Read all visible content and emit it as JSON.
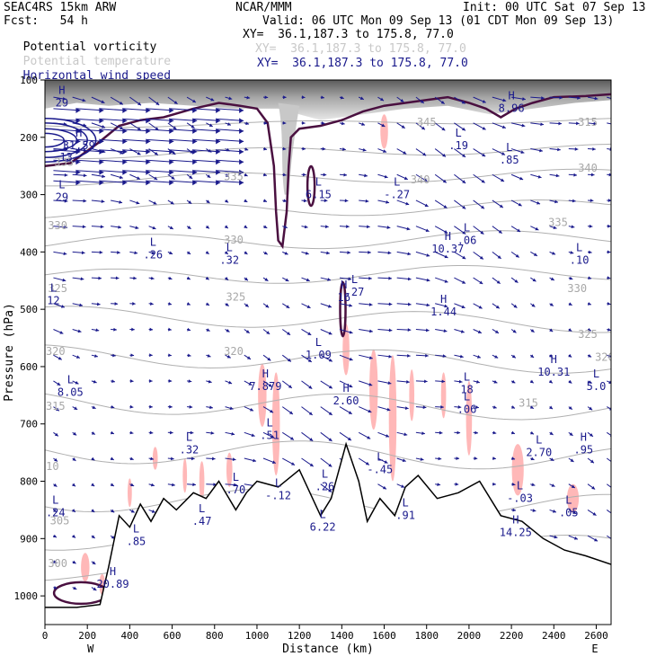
{
  "header": {
    "model": "SEAC4RS 15km ARW",
    "forecast": "Fcst:   54 h",
    "org": "NCAR/MMM",
    "init": "Init: 00 UTC Sat 07 Sep 13",
    "valid": "Valid: 06 UTC Mon 09 Sep 13 (01 CDT Mon 09 Sep 13)"
  },
  "legend": [
    {
      "name": "Potential vorticity",
      "xy": "XY=  36.1,187.3 to 175.8, 77.0",
      "color": "#000000"
    },
    {
      "name": "Potential temperature",
      "xy": "XY=  36.1,187.3 to 175.8, 77.0",
      "color": "#c0c0c0"
    },
    {
      "name": "Horizontal wind speed",
      "xy": "XY=  36.1,187.3 to 175.8, 77.0",
      "color": "#1a1a8c"
    }
  ],
  "colors": {
    "theta": "#b0b0b0",
    "pv_contour": "#4a1040",
    "wind": "#1a1a8c",
    "shading": "#ffb0b0",
    "terrain": "#000000"
  },
  "chart_data": {
    "type": "cross-section",
    "xlabel": "Distance (km)",
    "ylabel": "Pressure (hPa)",
    "x_ticks": [
      "0",
      "200",
      "400",
      "600",
      "800",
      "1000",
      "1200",
      "1400",
      "1600",
      "1800",
      "2000",
      "2200",
      "2400",
      "2600"
    ],
    "y_ticks": [
      "100",
      "200",
      "300",
      "400",
      "500",
      "600",
      "700",
      "800",
      "900",
      "1000"
    ],
    "xlim": [
      0,
      2670
    ],
    "ylim": [
      1050,
      100
    ],
    "x_end_labels": {
      "left": "W",
      "right": "E"
    },
    "theta_labels": [
      {
        "text": "345",
        "x": 1800,
        "p": 180
      },
      {
        "text": "315",
        "x": 2560,
        "p": 180
      },
      {
        "text": "340",
        "x": 2560,
        "p": 260
      },
      {
        "text": "335",
        "x": 90,
        "p": 250
      },
      {
        "text": "335",
        "x": 890,
        "p": 275
      },
      {
        "text": "340",
        "x": 1770,
        "p": 280
      },
      {
        "text": "330",
        "x": 60,
        "p": 360
      },
      {
        "text": "330",
        "x": 890,
        "p": 385
      },
      {
        "text": "335",
        "x": 2420,
        "p": 355
      },
      {
        "text": "325",
        "x": 60,
        "p": 470
      },
      {
        "text": "325",
        "x": 900,
        "p": 485
      },
      {
        "text": "330",
        "x": 2510,
        "p": 470
      },
      {
        "text": "320",
        "x": 50,
        "p": 580
      },
      {
        "text": "320",
        "x": 890,
        "p": 580
      },
      {
        "text": "325",
        "x": 2560,
        "p": 550
      },
      {
        "text": "315",
        "x": 50,
        "p": 675
      },
      {
        "text": "315",
        "x": 2280,
        "p": 670
      },
      {
        "text": "310",
        "x": 20,
        "p": 780
      },
      {
        "text": "305",
        "x": 70,
        "p": 875
      },
      {
        "text": "300",
        "x": 60,
        "p": 950
      },
      {
        "text": "320",
        "x": 2640,
        "p": 590
      }
    ],
    "extrema": [
      {
        "type": "H",
        "value": "29",
        "x": 80,
        "p": 135
      },
      {
        "type": "H",
        "value": "31.59",
        "x": 160,
        "p": 210
      },
      {
        "type": "L",
        "value": "13",
        "x": 100,
        "p": 230
      },
      {
        "type": "L",
        "value": "29",
        "x": 80,
        "p": 300
      },
      {
        "type": "H",
        "value": "8.96",
        "x": 2200,
        "p": 145
      },
      {
        "type": "L",
        "value": "6.15",
        "x": 1290,
        "p": 295
      },
      {
        "type": "L",
        "value": "-.27",
        "x": 1660,
        "p": 295
      },
      {
        "type": "L",
        "value": ".19",
        "x": 1950,
        "p": 210
      },
      {
        "type": "L",
        "value": ".85",
        "x": 2190,
        "p": 235
      },
      {
        "type": "L",
        "value": ".26",
        "x": 510,
        "p": 400
      },
      {
        "type": "L",
        "value": ".32",
        "x": 870,
        "p": 410
      },
      {
        "type": "H",
        "value": "10.37",
        "x": 1900,
        "p": 390
      },
      {
        "type": "L",
        "value": ".06",
        "x": 1990,
        "p": 375
      },
      {
        "type": "L",
        "value": ".10",
        "x": 2520,
        "p": 410
      },
      {
        "type": "L",
        "value": "12",
        "x": 40,
        "p": 480
      },
      {
        "type": "H",
        "value": "16",
        "x": 1410,
        "p": 475
      },
      {
        "type": "L",
        "value": ".27",
        "x": 1460,
        "p": 465
      },
      {
        "type": "H",
        "value": "1.44",
        "x": 1880,
        "p": 500
      },
      {
        "type": "L",
        "value": "1.09",
        "x": 1290,
        "p": 575
      },
      {
        "type": "H",
        "value": "10.31",
        "x": 2400,
        "p": 605
      },
      {
        "type": "L",
        "value": "5.0",
        "x": 2600,
        "p": 630
      },
      {
        "type": "L",
        "value": "8.05",
        "x": 120,
        "p": 640
      },
      {
        "type": "H",
        "value": "7.879",
        "x": 1040,
        "p": 630
      },
      {
        "type": "H",
        "value": "2.60",
        "x": 1420,
        "p": 655
      },
      {
        "type": "L",
        "value": "18",
        "x": 1990,
        "p": 635
      },
      {
        "type": "L",
        "value": ".06",
        "x": 1990,
        "p": 670
      },
      {
        "type": "L",
        "value": ".51",
        "x": 1060,
        "p": 715
      },
      {
        "type": "L",
        "value": ".32",
        "x": 680,
        "p": 740
      },
      {
        "type": "L",
        "value": "2.70",
        "x": 2330,
        "p": 745
      },
      {
        "type": "H",
        "value": ".95",
        "x": 2540,
        "p": 740
      },
      {
        "type": "L",
        "value": "-.45",
        "x": 1580,
        "p": 775
      },
      {
        "type": "L",
        "value": ".26",
        "x": 1320,
        "p": 805
      },
      {
        "type": "L",
        "value": ".70",
        "x": 900,
        "p": 810
      },
      {
        "type": "L",
        "value": "-.12",
        "x": 1100,
        "p": 820
      },
      {
        "type": "L",
        "value": "-.03",
        "x": 2240,
        "p": 825
      },
      {
        "type": "L",
        "value": ".05",
        "x": 2470,
        "p": 850
      },
      {
        "type": "L",
        "value": ".24",
        "x": 50,
        "p": 850
      },
      {
        "type": "L",
        "value": ".47",
        "x": 740,
        "p": 865
      },
      {
        "type": "L",
        "value": ".91",
        "x": 1700,
        "p": 855
      },
      {
        "type": "L",
        "value": "6.22",
        "x": 1310,
        "p": 875
      },
      {
        "type": "H",
        "value": "14.25",
        "x": 2220,
        "p": 885
      },
      {
        "type": "L",
        "value": ".85",
        "x": 430,
        "p": 900
      },
      {
        "type": "H",
        "value": "20.89",
        "x": 320,
        "p": 975
      }
    ]
  }
}
